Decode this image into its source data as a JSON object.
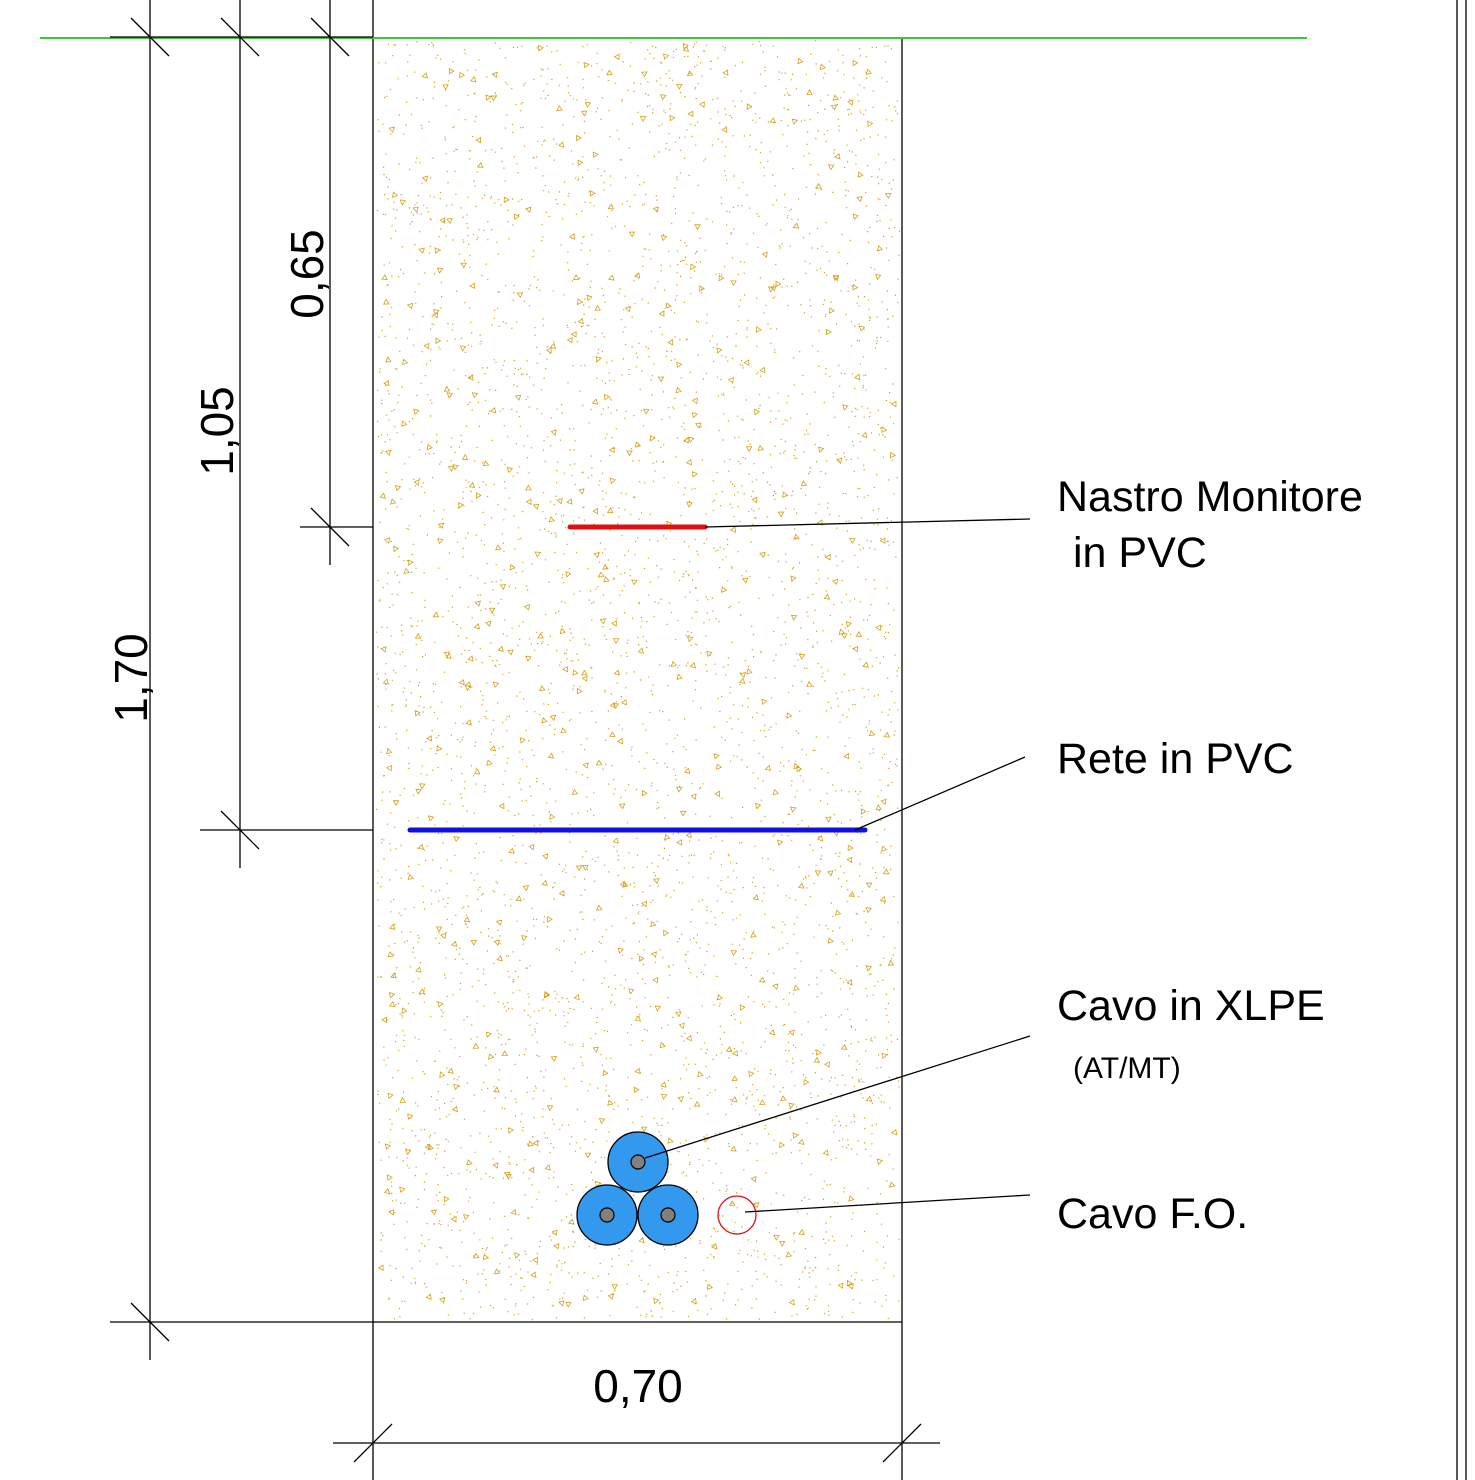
{
  "dimensions": {
    "total_depth": "1,70",
    "net_depth": "1,05",
    "tape_depth": "0,65",
    "trench_width": "0,70"
  },
  "labels": {
    "tape_line1": "Nastro Monitore",
    "tape_line2": "in PVC",
    "net": "Rete in PVC",
    "cable_line1": "Cavo in XLPE",
    "cable_line2": "(AT/MT)",
    "fiber": "Cavo F.O."
  },
  "colors": {
    "ground_line": "#33cc33",
    "fill_dots": "#d4a017",
    "tape": "#e01010",
    "net": "#1010e0",
    "cable": "#3399ee",
    "cable_core": "#808080",
    "fiber": "#dd1111"
  }
}
